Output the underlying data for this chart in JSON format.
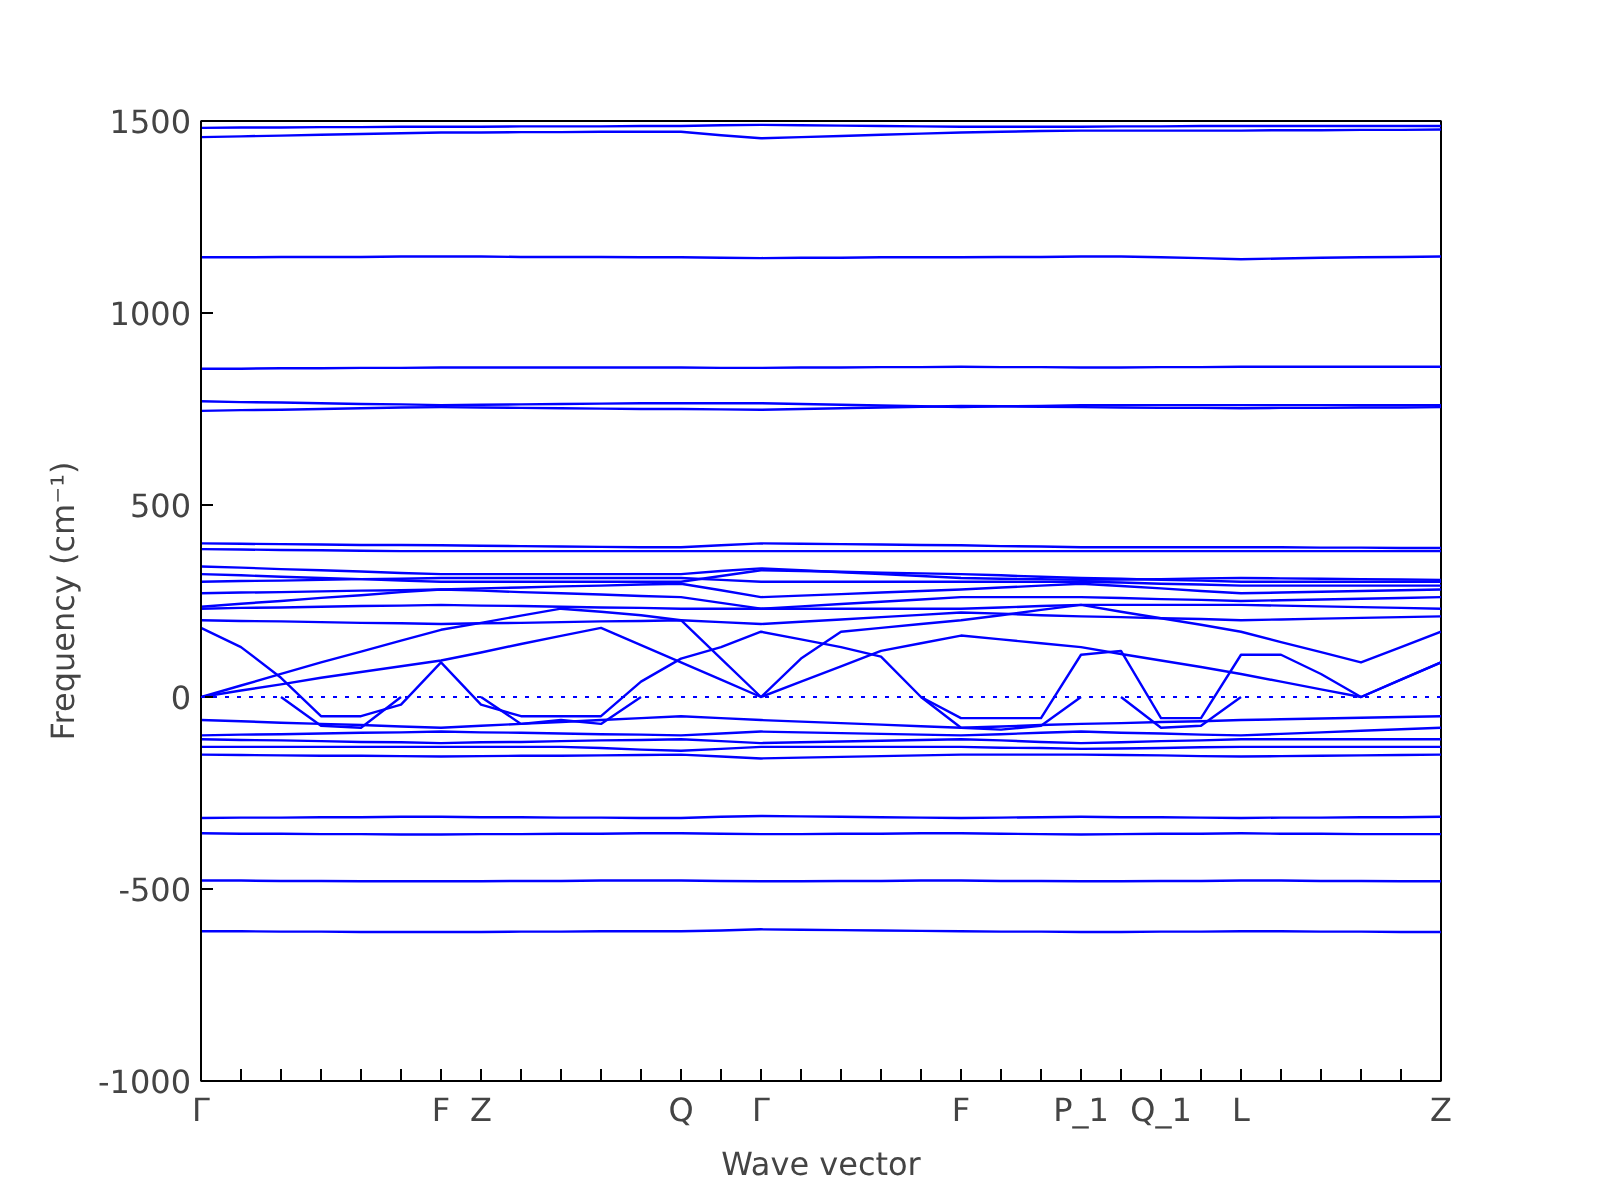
{
  "chart_data": {
    "type": "line",
    "xlabel": "Wave vector",
    "ylabel": "Frequency (cm⁻¹)",
    "grid": false,
    "marker": "none",
    "line_style": "solid",
    "ylim": [
      -1000,
      1500
    ],
    "yticks": [
      -1000,
      -500,
      0,
      500,
      1000,
      1500
    ],
    "categories": [
      "Γ",
      null,
      null,
      null,
      null,
      null,
      "F",
      "Z",
      null,
      null,
      null,
      null,
      "Q",
      null,
      "Γ",
      null,
      null,
      null,
      null,
      "F",
      null,
      null,
      "P_1",
      null,
      "Q_1",
      null,
      "L",
      null,
      null,
      null,
      null,
      "Z"
    ],
    "ref_lines": [
      {
        "axis": "y",
        "value": 0,
        "color": "#0000ff",
        "line_style": "dotted"
      }
    ],
    "series": [
      {
        "color": "#0000ff",
        "values": [
          1482,
          1483,
          1483,
          1484,
          1484,
          1485,
          1485,
          1485,
          1486,
          1486,
          1486,
          1487,
          1487,
          1489,
          1490,
          1489,
          1488,
          1487,
          1486,
          1485,
          1485,
          1485,
          1485,
          1486,
          1486,
          1487,
          1487,
          1487,
          1487,
          1487,
          1487,
          1487
        ]
      },
      {
        "color": "#0000ff",
        "values": [
          1458,
          1460,
          1462,
          1464,
          1466,
          1468,
          1470,
          1470,
          1471,
          1471,
          1472,
          1472,
          1472,
          1463,
          1455,
          1458,
          1461,
          1464,
          1467,
          1470,
          1472,
          1474,
          1475,
          1475,
          1475,
          1475,
          1475,
          1476,
          1476,
          1477,
          1477,
          1478
        ]
      },
      {
        "color": "#0000ff",
        "values": [
          1145,
          1145,
          1146,
          1146,
          1146,
          1147,
          1147,
          1147,
          1146,
          1146,
          1146,
          1145,
          1145,
          1144,
          1143,
          1144,
          1144,
          1145,
          1145,
          1145,
          1146,
          1146,
          1147,
          1147,
          1145,
          1143,
          1140,
          1142,
          1144,
          1145,
          1146,
          1147
        ]
      },
      {
        "color": "#0000ff",
        "values": [
          855,
          855,
          856,
          856,
          857,
          857,
          858,
          858,
          858,
          858,
          858,
          858,
          858,
          857,
          857,
          858,
          858,
          859,
          859,
          860,
          859,
          859,
          858,
          858,
          859,
          859,
          860,
          860,
          860,
          860,
          860,
          860
        ]
      },
      {
        "color": "#0000ff",
        "values": [
          770,
          768,
          767,
          765,
          763,
          762,
          760,
          761,
          762,
          763,
          764,
          765,
          765,
          765,
          765,
          763,
          761,
          759,
          757,
          755,
          757,
          758,
          760,
          760,
          760,
          760,
          760,
          760,
          760,
          760,
          760,
          760
        ]
      },
      {
        "color": "#0000ff",
        "values": [
          745,
          747,
          748,
          750,
          752,
          754,
          755,
          754,
          753,
          752,
          751,
          750,
          750,
          749,
          748,
          750,
          752,
          754,
          756,
          758,
          757,
          756,
          755,
          754,
          753,
          753,
          752,
          753,
          753,
          754,
          754,
          755
        ]
      },
      {
        "color": "#0000ff",
        "values": [
          400,
          399,
          398,
          397,
          396,
          396,
          395,
          394,
          393,
          392,
          391,
          390,
          390,
          395,
          400,
          399,
          398,
          397,
          396,
          395,
          393,
          392,
          390,
          390,
          390,
          390,
          390,
          390,
          389,
          389,
          388,
          388
        ]
      },
      {
        "color": "#0000ff",
        "values": [
          385,
          384,
          383,
          382,
          381,
          380,
          380,
          380,
          380,
          380,
          380,
          380,
          380,
          380,
          380,
          380,
          380,
          380,
          380,
          380,
          380,
          380,
          380,
          380,
          380,
          380,
          380,
          380,
          380,
          380,
          380,
          380
        ]
      },
      {
        "color": "#0000ff",
        "values": [
          340,
          337,
          333,
          330,
          327,
          323,
          320,
          320,
          320,
          320,
          320,
          320,
          320,
          328,
          335,
          330,
          325,
          320,
          315,
          310,
          308,
          307,
          305,
          306,
          307,
          309,
          310,
          309,
          308,
          307,
          306,
          305
        ]
      },
      {
        "color": "#0000ff",
        "values": [
          320,
          317,
          313,
          310,
          307,
          303,
          300,
          300,
          300,
          300,
          300,
          300,
          300,
          315,
          330,
          328,
          326,
          324,
          322,
          320,
          317,
          313,
          310,
          308,
          305,
          303,
          300,
          300,
          300,
          300,
          300,
          300
        ]
      },
      {
        "color": "#0000ff",
        "values": [
          300,
          302,
          303,
          305,
          307,
          308,
          310,
          310,
          310,
          310,
          310,
          310,
          310,
          305,
          300,
          300,
          300,
          300,
          300,
          300,
          300,
          300,
          300,
          298,
          295,
          293,
          290,
          290,
          290,
          290,
          290,
          290
        ]
      },
      {
        "color": "#0000ff",
        "values": [
          270,
          272,
          273,
          275,
          277,
          278,
          280,
          283,
          285,
          288,
          290,
          293,
          295,
          278,
          260,
          264,
          268,
          272,
          276,
          280,
          285,
          290,
          295,
          289,
          283,
          276,
          270,
          272,
          274,
          276,
          278,
          280
        ]
      },
      {
        "color": "#0000ff",
        "values": [
          235,
          243,
          250,
          258,
          265,
          273,
          280,
          277,
          273,
          270,
          267,
          263,
          260,
          245,
          230,
          236,
          242,
          248,
          254,
          260,
          260,
          260,
          260,
          258,
          255,
          253,
          250,
          252,
          254,
          256,
          258,
          260
        ]
      },
      {
        "color": "#0000ff",
        "values": [
          230,
          232,
          233,
          235,
          237,
          238,
          240,
          238,
          237,
          235,
          233,
          232,
          230,
          230,
          230,
          230,
          230,
          230,
          230,
          230,
          233,
          237,
          240,
          240,
          240,
          240,
          240,
          238,
          236,
          234,
          232,
          230
        ]
      },
      {
        "color": "#0000ff",
        "values": [
          200,
          198,
          197,
          195,
          193,
          192,
          190,
          192,
          193,
          195,
          197,
          198,
          200,
          195,
          190,
          196,
          202,
          208,
          214,
          220,
          217,
          213,
          210,
          208,
          205,
          203,
          200,
          202,
          204,
          206,
          208,
          210
        ]
      },
      {
        "color": "#0000ff",
        "values": [
          -60,
          -63,
          -67,
          -70,
          -73,
          -77,
          -80,
          -75,
          -70,
          -65,
          -60,
          -55,
          -50,
          -55,
          -60,
          -64,
          -68,
          -72,
          -76,
          -80,
          -77,
          -73,
          -70,
          -68,
          -65,
          -63,
          -60,
          -58,
          -56,
          -54,
          -52,
          -50
        ]
      },
      {
        "color": "#0000ff",
        "values": [
          -100,
          -98,
          -97,
          -95,
          -93,
          -92,
          -90,
          -92,
          -93,
          -95,
          -97,
          -98,
          -100,
          -95,
          -90,
          -92,
          -94,
          -96,
          -98,
          -100,
          -97,
          -93,
          -90,
          -93,
          -95,
          -98,
          -100,
          -96,
          -92,
          -88,
          -84,
          -80
        ]
      },
      {
        "color": "#0000ff",
        "values": [
          -110,
          -112,
          -113,
          -115,
          -117,
          -118,
          -120,
          -118,
          -117,
          -115,
          -113,
          -112,
          -110,
          -115,
          -120,
          -118,
          -116,
          -114,
          -112,
          -110,
          -113,
          -117,
          -120,
          -118,
          -115,
          -113,
          -110,
          -110,
          -110,
          -110,
          -110,
          -110
        ]
      },
      {
        "color": "#0000ff",
        "values": [
          -130,
          -130,
          -130,
          -130,
          -130,
          -130,
          -130,
          -130,
          -130,
          -130,
          -133,
          -137,
          -140,
          -135,
          -130,
          -130,
          -130,
          -130,
          -130,
          -130,
          -132,
          -133,
          -135,
          -134,
          -133,
          -131,
          -130,
          -130,
          -130,
          -130,
          -130,
          -130
        ]
      },
      {
        "color": "#0000ff",
        "values": [
          -150,
          -151,
          -152,
          -153,
          -153,
          -154,
          -155,
          -154,
          -153,
          -153,
          -152,
          -151,
          -150,
          -155,
          -160,
          -158,
          -156,
          -154,
          -152,
          -150,
          -150,
          -150,
          -150,
          -151,
          -152,
          -154,
          -155,
          -154,
          -153,
          -152,
          -151,
          -150
        ]
      },
      {
        "color": "#0000ff",
        "values": [
          -315,
          -314,
          -314,
          -313,
          -313,
          -312,
          -312,
          -313,
          -313,
          -314,
          -314,
          -315,
          -315,
          -312,
          -310,
          -311,
          -312,
          -313,
          -314,
          -315,
          -314,
          -313,
          -312,
          -313,
          -313,
          -314,
          -315,
          -314,
          -314,
          -313,
          -313,
          -312
        ]
      },
      {
        "color": "#0000ff",
        "values": [
          -355,
          -356,
          -356,
          -357,
          -357,
          -358,
          -358,
          -357,
          -357,
          -356,
          -356,
          -355,
          -355,
          -356,
          -357,
          -357,
          -356,
          -356,
          -355,
          -355,
          -356,
          -357,
          -358,
          -357,
          -356,
          -356,
          -355,
          -356,
          -356,
          -357,
          -357,
          -357
        ]
      },
      {
        "color": "#0000ff",
        "values": [
          -478,
          -478,
          -479,
          -479,
          -480,
          -480,
          -480,
          -480,
          -479,
          -479,
          -478,
          -478,
          -478,
          -479,
          -480,
          -480,
          -479,
          -479,
          -478,
          -478,
          -479,
          -479,
          -480,
          -480,
          -479,
          -479,
          -478,
          -478,
          -479,
          -479,
          -480,
          -480
        ]
      },
      {
        "color": "#0000ff",
        "values": [
          -610,
          -610,
          -611,
          -611,
          -612,
          -612,
          -612,
          -612,
          -611,
          -611,
          -610,
          -610,
          -610,
          -608,
          -605,
          -606,
          -607,
          -608,
          -609,
          -610,
          -611,
          -611,
          -612,
          -612,
          -611,
          -611,
          -610,
          -610,
          -611,
          -611,
          -612,
          -612
        ]
      },
      {
        "color": "#0000ff",
        "values": [
          0,
          17,
          33,
          50,
          65,
          80,
          95,
          116,
          138,
          159,
          180,
          135,
          90,
          45,
          0,
          40,
          80,
          120,
          140,
          160,
          150,
          140,
          130,
          112,
          95,
          78,
          60,
          40,
          20,
          0,
          45,
          90
        ]
      },
      {
        "color": "#0000ff",
        "values": [
          0,
          30,
          60,
          90,
          118,
          147,
          175,
          193,
          212,
          230,
          222,
          213,
          200,
          100,
          0,
          100,
          170,
          180,
          190,
          200,
          213,
          227,
          240,
          222,
          205,
          188,
          170,
          143,
          117,
          90,
          130,
          170
        ]
      },
      {
        "color": "#0000ff",
        "values": [
          180,
          130,
          50,
          -50,
          -50,
          -20,
          90,
          -20,
          -50,
          -50,
          -50,
          40,
          100,
          130,
          170,
          150,
          130,
          105,
          0,
          -55,
          -55,
          -55,
          110,
          120,
          -55,
          -55,
          110,
          110,
          60,
          0,
          45,
          90
        ]
      },
      {
        "color": "#0000ff",
        "values": [
          null,
          null,
          0,
          -75,
          -80,
          0,
          null,
          null,
          null,
          null,
          null,
          null,
          null,
          null,
          null,
          null,
          null,
          null,
          null,
          null,
          null,
          null,
          null,
          null,
          null,
          null,
          null,
          null,
          null,
          null,
          null,
          null
        ]
      },
      {
        "color": "#0000ff",
        "values": [
          null,
          null,
          null,
          null,
          null,
          null,
          null,
          0,
          -70,
          -60,
          -70,
          0,
          null,
          null,
          null,
          null,
          null,
          null,
          null,
          null,
          null,
          null,
          null,
          null,
          null,
          null,
          null,
          null,
          null,
          null,
          null,
          null
        ]
      },
      {
        "color": "#0000ff",
        "values": [
          null,
          null,
          null,
          null,
          null,
          null,
          null,
          null,
          null,
          null,
          null,
          null,
          null,
          null,
          null,
          null,
          null,
          null,
          0,
          -80,
          -85,
          -75,
          0,
          null,
          null,
          null,
          null,
          null,
          null,
          null,
          null,
          null
        ]
      },
      {
        "color": "#0000ff",
        "values": [
          null,
          null,
          null,
          null,
          null,
          null,
          null,
          null,
          null,
          null,
          null,
          null,
          null,
          null,
          null,
          null,
          null,
          null,
          null,
          null,
          null,
          null,
          null,
          0,
          -80,
          -75,
          0,
          null,
          null,
          null,
          null,
          null
        ]
      }
    ]
  }
}
